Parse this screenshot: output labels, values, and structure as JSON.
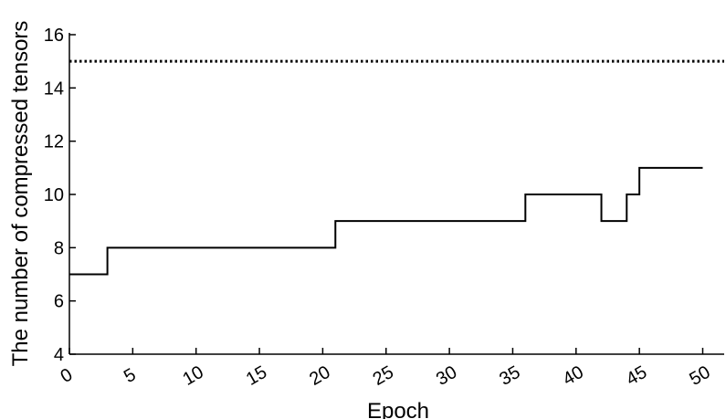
{
  "chart_data": {
    "type": "line",
    "title": "",
    "xlabel": "Epoch",
    "ylabel": "The number of compressed tensors",
    "xlim": [
      0,
      50
    ],
    "ylim": [
      4,
      16
    ],
    "x_ticks": [
      "0",
      "5",
      "10",
      "15",
      "20",
      "25",
      "30",
      "35",
      "40",
      "45",
      "50"
    ],
    "y_ticks": [
      "4",
      "6",
      "8",
      "10",
      "12",
      "14",
      "16"
    ],
    "grid": false,
    "legend": "none",
    "series": [
      {
        "style": "solid-step",
        "color": "#000000",
        "points": [
          [
            0,
            7
          ],
          [
            3,
            7
          ],
          [
            3,
            8
          ],
          [
            21,
            8
          ],
          [
            21,
            9
          ],
          [
            36,
            9
          ],
          [
            36,
            10
          ],
          [
            42,
            10
          ],
          [
            42,
            9
          ],
          [
            44,
            9
          ],
          [
            44,
            10
          ],
          [
            45,
            10
          ],
          [
            45,
            11
          ],
          [
            50,
            11
          ]
        ]
      },
      {
        "style": "dotted",
        "color": "#000000",
        "points": [
          [
            0,
            15
          ],
          [
            52,
            15
          ]
        ]
      }
    ]
  }
}
